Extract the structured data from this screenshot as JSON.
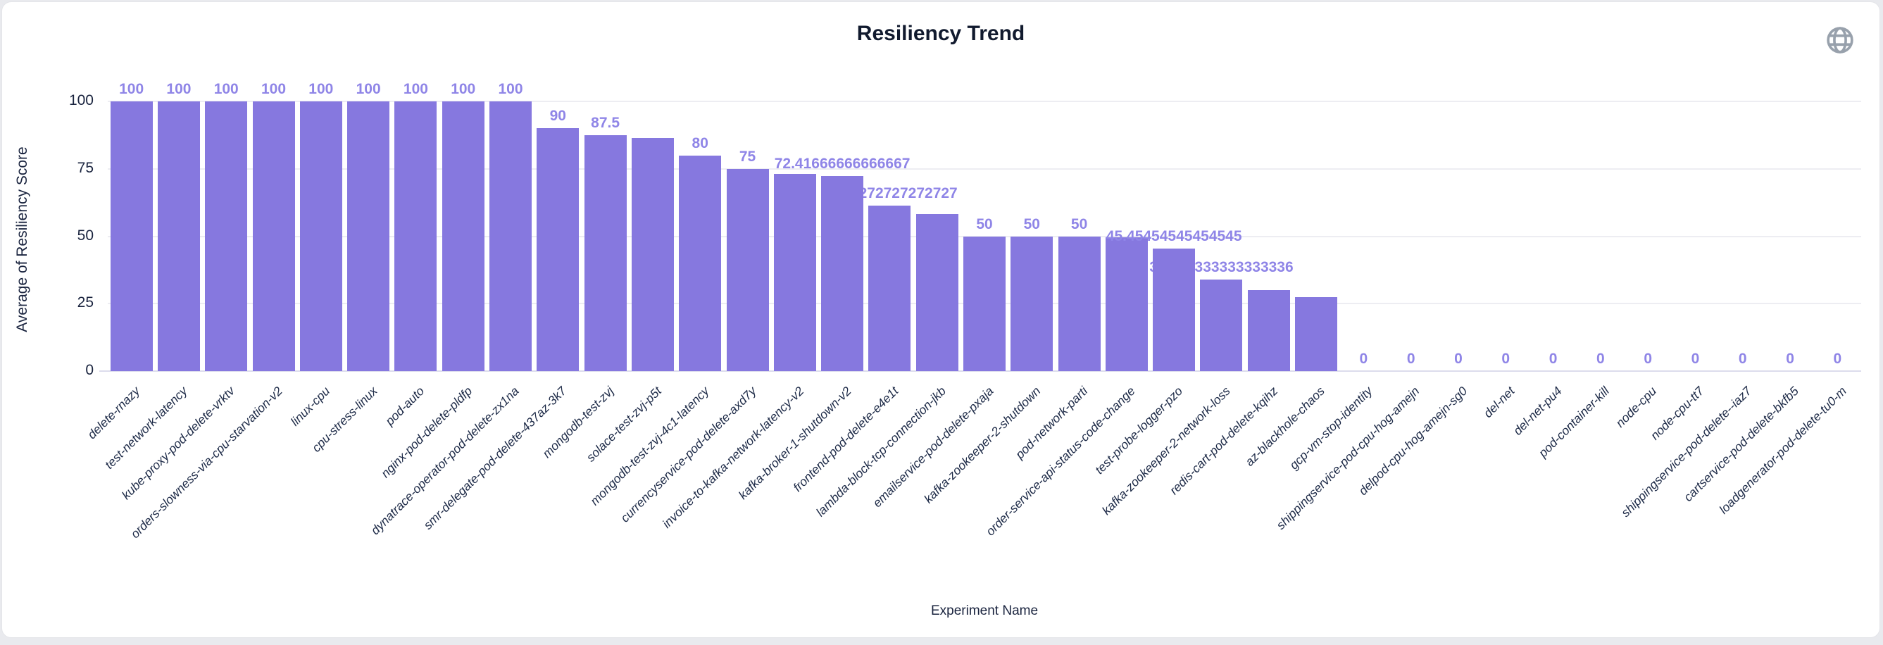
{
  "title": "Resiliency Trend",
  "icons": {
    "globe": "globe-icon"
  },
  "chart_data": {
    "type": "bar",
    "title": "Resiliency Trend",
    "xlabel": "Experiment Name",
    "ylabel": "Average of Resiliency Score",
    "ylim": [
      0,
      100
    ],
    "yticks": [
      0,
      25,
      50,
      75,
      100
    ],
    "ytick_labels": [
      "0",
      "25",
      "50",
      "75",
      "100"
    ],
    "grid": true,
    "legend": "none",
    "bar_color": "#8678DF",
    "value_label_color": "#8F85E7",
    "axis_text_color": "#19233E",
    "categories": [
      "delete-rnazy",
      "test-network-latency",
      "kube-proxy-pod-delete-vrktv",
      "orders-slowness-via-cpu-starvation-v2",
      "linux-cpu",
      "cpu-stress-linux",
      "pod-auto",
      "nginx-pod-delete-pldfp",
      "dynatrace-operator-pod-delete-zx1na",
      "smr-delegate-pod-delete-437az-3k7",
      "mongodb-test-zvj",
      "solace-test-zvj-p5t",
      "mongodb-test-zvj-4c1-latency",
      "currencyservice-pod-delete-axd7y",
      "invoice-to-kafka-network-latency-v2",
      "kafka-broker-1-shutdown-v2",
      "frontend-pod-delete-e4e1t",
      "lambda-block-tcp-connection-jkb",
      "emailservice-pod-delete-pxaja",
      "kafka-zookeeper-2-shutdown",
      "pod-network-parti",
      "order-service-api-status-code-change",
      "test-probe-logger-pzo",
      "kafka-zookeeper-2-network-loss",
      "redis-cart-pod-delete-kqihz",
      "az-blackhole-chaos",
      "gcp-vm-stop-identity",
      "shippingservice-pod-cpu-hog-amejn",
      "delpod-cpu-hog-amejn-sg0",
      "del-net",
      "del-net-pu4",
      "pod-container-kill",
      "node-cpu",
      "node-cpu-tt7",
      "shippingservice-pod-delete--iaz7",
      "cartservice-pod-delete-bkfb5",
      "loadgenerator-pod-delete-tu0-m"
    ],
    "values": [
      100,
      100,
      100,
      100,
      100,
      100,
      100,
      100,
      100,
      90,
      87.5,
      86.3,
      80,
      75,
      73.2,
      72.41666666666667,
      61.27272727272727,
      58.3,
      50,
      50,
      50,
      49.7,
      45.45454545454545,
      33.833333333333336,
      30,
      27.3,
      0,
      0,
      0,
      0,
      0,
      0,
      0,
      0,
      0,
      0,
      0
    ],
    "bar_labels": [
      "100",
      "100",
      "100",
      "100",
      "100",
      "100",
      "100",
      "100",
      "100",
      "90",
      "87.5",
      "",
      "80",
      "75",
      "",
      "72.41666666666667",
      "61.27272727272727",
      "",
      "50",
      "50",
      "50",
      "",
      "45.45454545454545",
      "33.833333333333336",
      "",
      "",
      "0",
      "0",
      "0",
      "0",
      "0",
      "0",
      "0",
      "0",
      "0",
      "0",
      "0"
    ],
    "labels_drawn_under_bars": [
      16,
      23
    ]
  }
}
